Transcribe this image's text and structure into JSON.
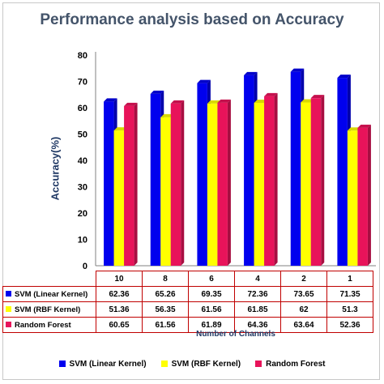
{
  "chart_data": {
    "type": "bar",
    "title": "Performance analysis based on Accuracy",
    "xlabel": "Number of Channels",
    "ylabel": "Accuracy(%)",
    "ylim": [
      0,
      80
    ],
    "yticks": [
      0,
      10,
      20,
      30,
      40,
      50,
      60,
      70,
      80
    ],
    "categories": [
      "10",
      "8",
      "6",
      "4",
      "2",
      "1"
    ],
    "series": [
      {
        "name": "SVM (Linear Kernel)",
        "color": "#0000ee",
        "values": [
          62.36,
          65.26,
          69.35,
          72.36,
          73.65,
          71.35
        ]
      },
      {
        "name": "SVM (RBF Kernel)",
        "color": "#ffff00",
        "values": [
          51.36,
          56.35,
          61.56,
          61.85,
          62,
          51.3
        ]
      },
      {
        "name": "Random Forest",
        "color": "#e8135a",
        "values": [
          60.65,
          61.56,
          61.89,
          64.36,
          63.64,
          52.36
        ]
      }
    ],
    "grid": false,
    "legend": "bottom",
    "data_table": true
  }
}
